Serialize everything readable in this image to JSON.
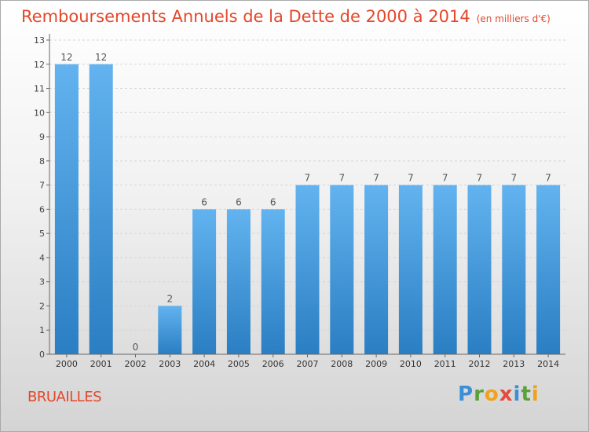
{
  "header": {
    "title": "Remboursements Annuels de la Dette de 2000 à 2014",
    "subtitle": "(en milliers d'€)"
  },
  "footer": {
    "commune": "BRUAILLES",
    "logo": "Proxiti"
  },
  "colors": {
    "bar": "#4a9fe0",
    "bar_top": "#62b3ef",
    "bar_bottom": "#2a7ec2",
    "accent": "#e4472a"
  },
  "chart_data": {
    "type": "bar",
    "title": "Remboursements Annuels de la Dette de 2000 à 2014",
    "subtitle": "(en milliers d'€)",
    "categories": [
      "2000",
      "2001",
      "2002",
      "2003",
      "2004",
      "2005",
      "2006",
      "2007",
      "2008",
      "2009",
      "2010",
      "2011",
      "2012",
      "2013",
      "2014"
    ],
    "values": [
      12,
      12,
      0,
      2,
      6,
      6,
      6,
      7,
      7,
      7,
      7,
      7,
      7,
      7,
      7
    ],
    "ylim": [
      0,
      13
    ],
    "yticks": [
      0,
      1,
      2,
      3,
      4,
      5,
      6,
      7,
      8,
      9,
      10,
      11,
      12,
      13
    ],
    "grid": true,
    "legend": "none"
  }
}
